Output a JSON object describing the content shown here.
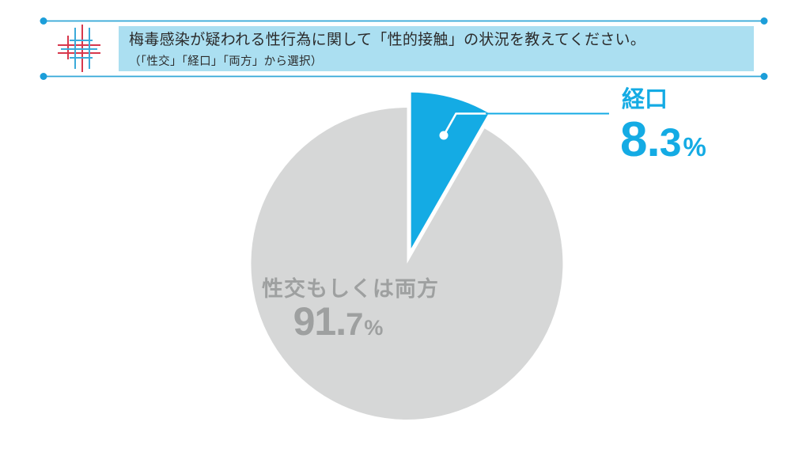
{
  "header": {
    "question_line1": "梅毒感染が疑われる性行為に関して「性的接触」の状況を教えてください。",
    "question_line2": "（「性交」「経口」「両方」から選択）",
    "logo_icon": "medical-crosshatch-logo"
  },
  "chart_data": {
    "type": "pie",
    "title": "梅毒感染が疑われる性行為に関して「性的接触」の状況",
    "categories": [
      "経口",
      "性交もしくは両方"
    ],
    "values": [
      8.3,
      91.7
    ],
    "unit": "%",
    "start_angle_deg": 0,
    "direction": "clockwise",
    "legend_position": "none",
    "slices": [
      {
        "label": "経口",
        "value": 8.3,
        "color": "#14ABE4",
        "exploded": true
      },
      {
        "label": "性交もしくは両方",
        "value": 91.7,
        "color": "#D6D7D7",
        "exploded": false
      }
    ]
  },
  "labels": {
    "oral": {
      "name": "経口",
      "int": "8",
      "sep": ".",
      "dec": "3",
      "pct": "%"
    },
    "both": {
      "name": "性交もしくは両方",
      "int": "91",
      "sep": ".",
      "dec": "7",
      "pct": "%"
    }
  },
  "colors": {
    "accent_blue": "#14ABE4",
    "rule_blue": "#33A7D8",
    "dot_blue": "#1C9ED9",
    "box_blue": "#ABDFF1",
    "text_dark": "#2B2B2B",
    "slice_gray": "#D6D7D7",
    "text_gray": "#9EA0A0",
    "leader_white": "#FFFFFF",
    "logo_red": "#D7384C",
    "logo_blue": "#3BAAD9",
    "background": "#FFFFFF"
  }
}
